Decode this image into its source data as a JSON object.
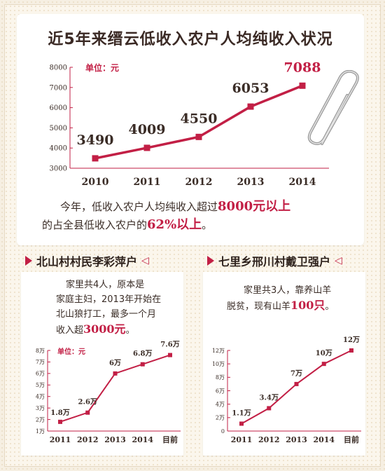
{
  "title": "近5年来缙云低收入农户人均纯收入状况",
  "summary": {
    "line1": "今年，低收入农户人均纯收入超过",
    "line1_highlight": "8000元以上",
    "line2_prefix": "的占全县低收入农户的",
    "line2_highlight": "62%以上",
    "line2_suffix": "。"
  },
  "left_section": {
    "title": "北山村村民李彩萍户",
    "desc_lines": [
      "家里共4人，原本是",
      "家庭主妇，2013年开始在",
      "北山狼打工，最多一个月"
    ],
    "desc_last_prefix": "收入超",
    "desc_last_highlight": "3000元",
    "desc_last_suffix": "。"
  },
  "right_section": {
    "title": "七里乡邢川村戴卫强户",
    "desc_line1": "家里共3人，靠养山羊",
    "desc_line2_prefix": "脱贫，现有山羊",
    "desc_line2_highlight": "100只",
    "desc_line2_suffix": "。"
  },
  "colors": {
    "accent": "#c21f45",
    "text": "#3a2c26",
    "background": "#fbf6ec"
  },
  "icons": [
    "paperclip-icon",
    "triangle-right-icon",
    "triangle-left-icon"
  ],
  "chart_data": [
    {
      "type": "line",
      "unit_label": "单位：元",
      "categories": [
        "2010",
        "2011",
        "2012",
        "2013",
        "2014"
      ],
      "values": [
        3490,
        4009,
        4550,
        6053,
        7088
      ],
      "value_labels": [
        "3490",
        "4009",
        "4550",
        "6053",
        "7088"
      ],
      "y_ticks": [
        "3000",
        "4000",
        "5000",
        "6000",
        "7000",
        "8000"
      ],
      "ylim": [
        3000,
        8000
      ],
      "grid": false
    },
    {
      "type": "line",
      "unit_label": "单位：元",
      "categories": [
        "2011",
        "2012",
        "2013",
        "2014",
        "目前"
      ],
      "values": [
        1.8,
        2.6,
        6,
        6.8,
        7.6
      ],
      "value_labels": [
        "1.8万",
        "2.6万",
        "6万",
        "6.8万",
        "7.6万"
      ],
      "y_ticks": [
        "1万",
        "2万",
        "3万",
        "4万",
        "5万",
        "6万",
        "7万",
        "8万"
      ],
      "ylim": [
        1,
        8
      ],
      "grid": false
    },
    {
      "type": "line",
      "categories": [
        "2011",
        "2012",
        "2013",
        "2014",
        "目前"
      ],
      "values": [
        1.1,
        3.4,
        7,
        10,
        12
      ],
      "value_labels": [
        "1.1万",
        "3.4万",
        "7万",
        "10万",
        "12万"
      ],
      "y_ticks": [
        "0",
        "2万",
        "4万",
        "6万",
        "8万",
        "10万",
        "12万"
      ],
      "ylim": [
        0,
        12
      ],
      "grid": false
    }
  ]
}
